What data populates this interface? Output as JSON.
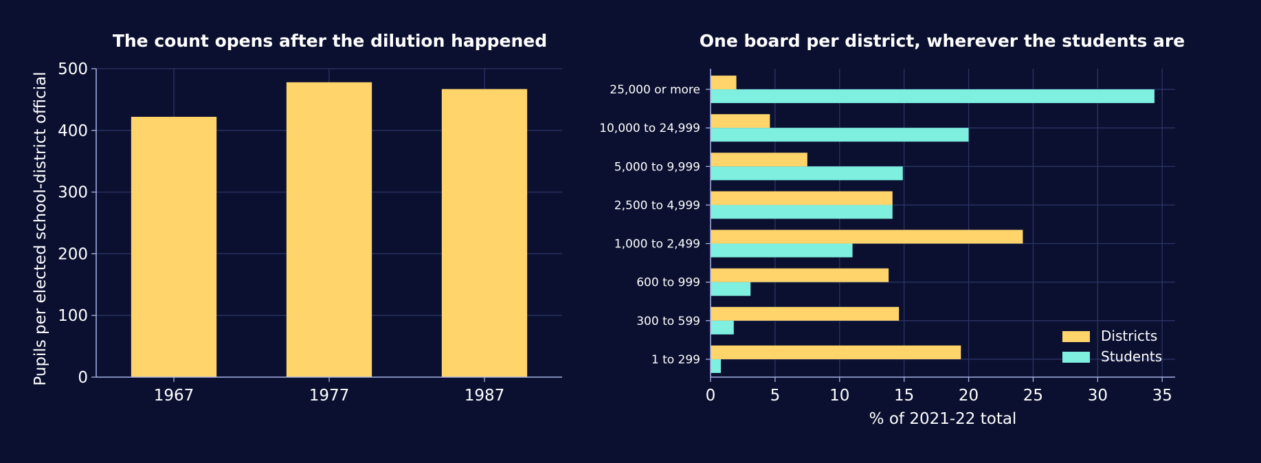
{
  "colors": {
    "background": "#0b1030",
    "grid": "#2b3566",
    "axis": "#aab4e8",
    "text": "#ffffff",
    "districts": "#ffd56b",
    "students": "#7ff0e0"
  },
  "chart_data": [
    {
      "type": "bar",
      "title": "The count opens after the dilution happened",
      "xlabel": "",
      "ylabel": "Pupils per elected school-district official",
      "categories": [
        "1967",
        "1977",
        "1987"
      ],
      "series": [
        {
          "values": [
            422,
            478,
            467
          ]
        }
      ],
      "ylim": [
        0,
        500
      ],
      "yticks": [
        0,
        100,
        200,
        300,
        400,
        500
      ],
      "grid": true
    },
    {
      "type": "bar",
      "orientation": "horizontal",
      "title": "One board per district, wherever the students are",
      "xlabel": "% of 2021-22 total",
      "ylabel": "",
      "categories": [
        "25,000 or more",
        "10,000 to 24,999",
        "5,000 to 9,999",
        "2,500 to 4,999",
        "1,000 to 2,499",
        "600 to 999",
        "300 to 599",
        "1 to 299"
      ],
      "series": [
        {
          "name": "Districts",
          "values": [
            2.0,
            4.6,
            7.5,
            14.1,
            24.2,
            13.8,
            14.6,
            19.4
          ]
        },
        {
          "name": "Students",
          "values": [
            34.4,
            20.0,
            14.9,
            14.1,
            11.0,
            3.1,
            1.8,
            0.8
          ]
        }
      ],
      "xlim": [
        0,
        36
      ],
      "xticks": [
        0,
        5,
        10,
        15,
        20,
        25,
        30,
        35
      ],
      "grid": true,
      "legend": "bottom-right"
    }
  ]
}
